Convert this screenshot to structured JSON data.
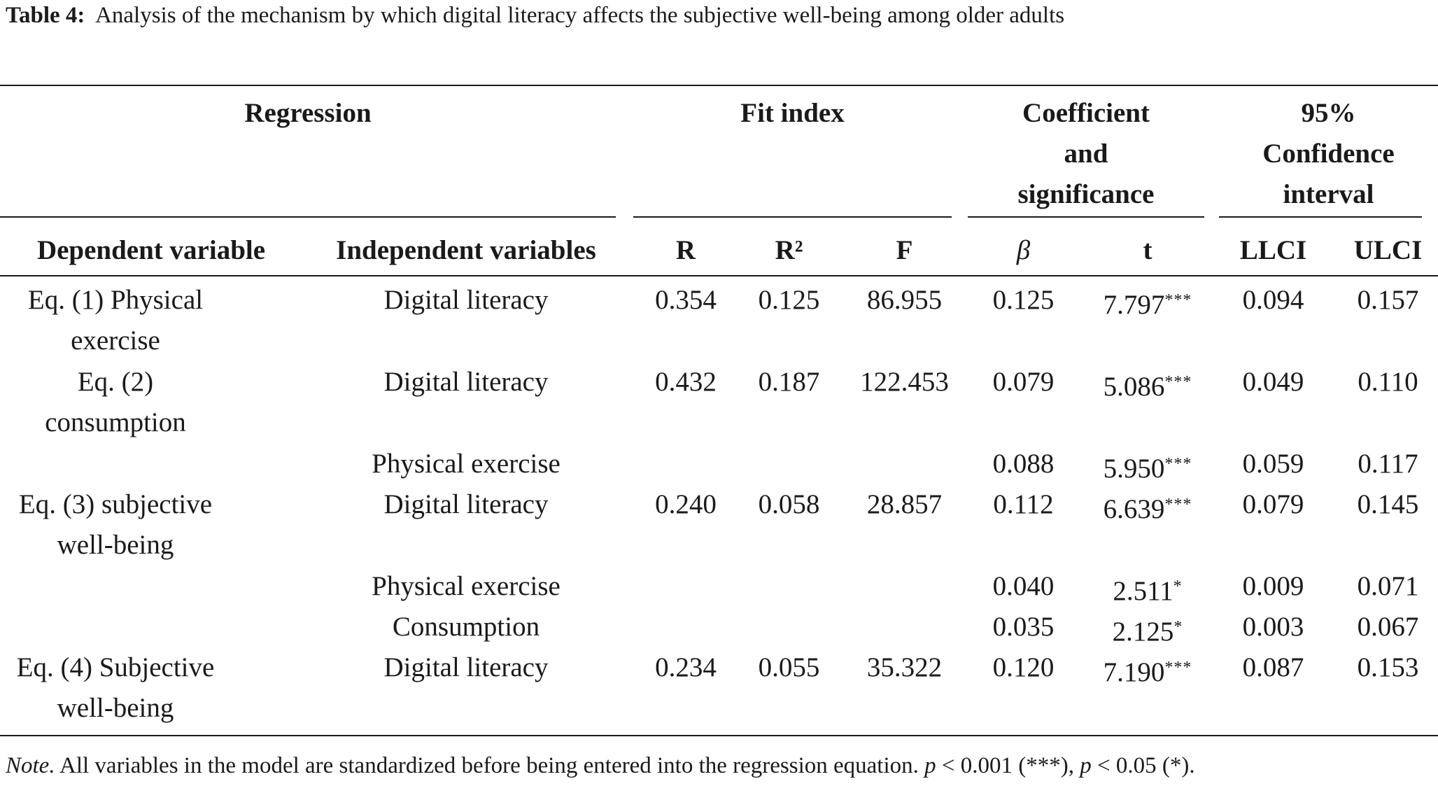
{
  "caption": {
    "label": "Table 4:",
    "text": "Analysis of the mechanism by which digital literacy affects the subjective well-being among older adults"
  },
  "header": {
    "group_regression": "Regression",
    "group_fit": "Fit index",
    "group_coef": [
      "Coefficient",
      "and",
      "significance"
    ],
    "group_ci": [
      "95%",
      "Confidence",
      "interval"
    ],
    "col_dependent": "Dependent variable",
    "col_independent": "Independent variables",
    "col_r": "R",
    "col_r2": "R²",
    "col_f": "F",
    "col_beta": "β",
    "col_t": "t",
    "col_llci": "LLCI",
    "col_ulci": "ULCI"
  },
  "rows": [
    {
      "dep": [
        "Eq. (1) Physical",
        "exercise"
      ],
      "indep": "Digital literacy",
      "r": "0.354",
      "r2": "0.125",
      "f": "86.955",
      "beta": "0.125",
      "t": "7.797",
      "t_sig": "***",
      "llci": "0.094",
      "ulci": "0.157"
    },
    {
      "dep": [
        "Eq. (2)",
        "consumption"
      ],
      "indep": "Digital literacy",
      "r": "0.432",
      "r2": "0.187",
      "f": "122.453",
      "beta": "0.079",
      "t": "5.086",
      "t_sig": "***",
      "llci": "0.049",
      "ulci": "0.110"
    },
    {
      "dep": [],
      "indep": "Physical exercise",
      "r": "",
      "r2": "",
      "f": "",
      "beta": "0.088",
      "t": "5.950",
      "t_sig": "***",
      "llci": "0.059",
      "ulci": "0.117"
    },
    {
      "dep": [
        "Eq. (3) subjective",
        "well-being"
      ],
      "indep": "Digital literacy",
      "r": "0.240",
      "r2": "0.058",
      "f": "28.857",
      "beta": "0.112",
      "t": "6.639",
      "t_sig": "***",
      "llci": "0.079",
      "ulci": "0.145"
    },
    {
      "dep": [],
      "indep": "Physical exercise",
      "r": "",
      "r2": "",
      "f": "",
      "beta": "0.040",
      "t": "2.511",
      "t_sig": "*",
      "llci": "0.009",
      "ulci": "0.071"
    },
    {
      "dep": [],
      "indep": "Consumption",
      "r": "",
      "r2": "",
      "f": "",
      "beta": "0.035",
      "t": "2.125",
      "t_sig": "*",
      "llci": "0.003",
      "ulci": "0.067"
    },
    {
      "dep": [
        "Eq. (4) Subjective",
        "well-being"
      ],
      "indep": "Digital literacy",
      "r": "0.234",
      "r2": "0.055",
      "f": "35.322",
      "beta": "0.120",
      "t": "7.190",
      "t_sig": "***",
      "llci": "0.087",
      "ulci": "0.153"
    }
  ],
  "note": {
    "label": "Note.",
    "text": "All variables in the model are standardized before being entered into the regression equation.",
    "p1": "p",
    "p1_text": "< 0.001 (***),",
    "p2": "p",
    "p2_text": "< 0.05 (*)."
  }
}
